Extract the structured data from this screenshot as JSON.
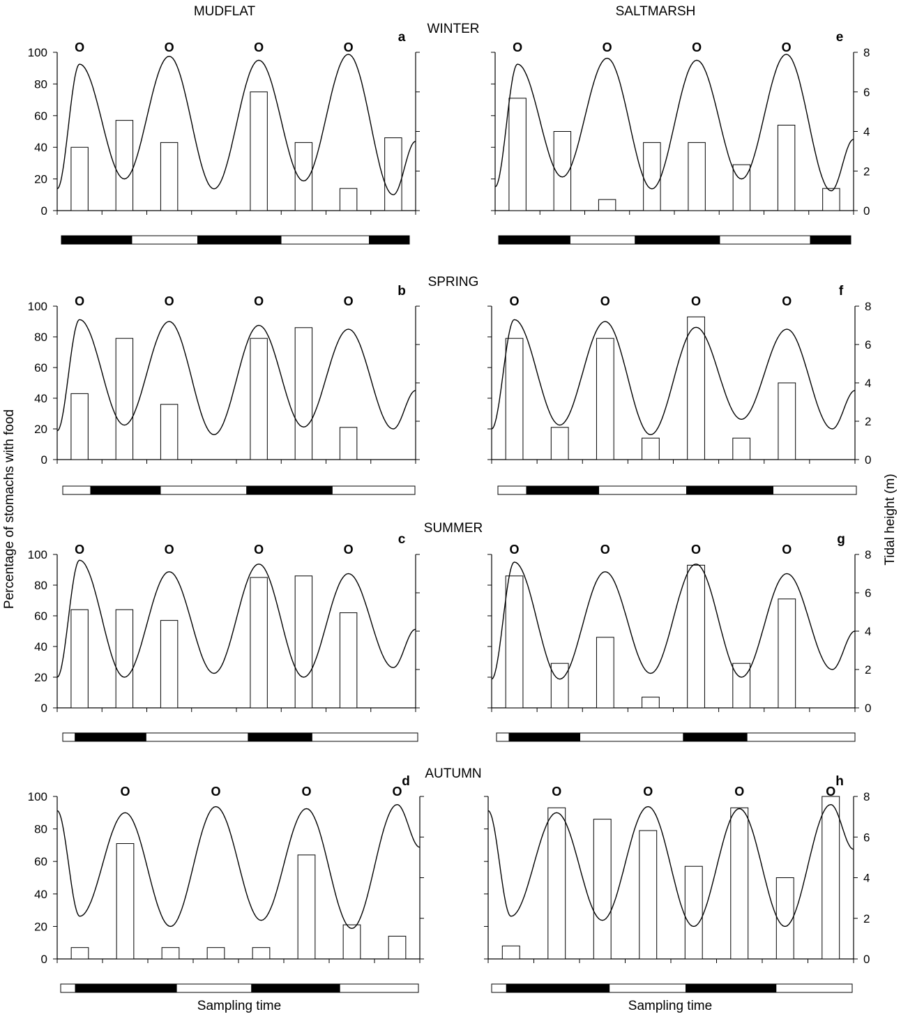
{
  "headers": {
    "left_column": "MUDFLAT",
    "right_column": "SALTMARSH",
    "y_left_label": "Percentage of stomachs with food",
    "y_right_label": "Tidal height (m)",
    "x_label": "Sampling time"
  },
  "seasons": [
    "WINTER",
    "SPRING",
    "SUMMER",
    "AUTUMN"
  ],
  "marker_symbol": "O",
  "chart_data": [
    {
      "type": "bar",
      "panel": "a",
      "habitat": "MUDFLAT",
      "season": "WINTER",
      "ylim": [
        0,
        100
      ],
      "y2lim": [
        0,
        8
      ],
      "yticks": [
        "0",
        "20",
        "40",
        "60",
        "80",
        "100"
      ],
      "y2ticks": [
        "0",
        "2",
        "4",
        "6",
        "8"
      ],
      "bars": [
        40,
        57,
        43,
        null,
        75,
        43,
        14,
        46
      ],
      "tide_highs_m": [
        7.4,
        7.8,
        7.6,
        7.9
      ],
      "tide_lows_m": [
        1.6,
        1.1,
        1.5,
        0.8
      ],
      "tide_start_m": 1.1,
      "tide_end_m": 3.5,
      "tide_first": "high",
      "marker_positions": [
        0.5,
        2.5,
        4.5,
        6.5
      ],
      "daynight": [
        [
          "dark",
          1.58
        ],
        [
          "light",
          1.48
        ],
        [
          "dark",
          1.87
        ],
        [
          "light",
          1.98
        ],
        [
          "dark",
          0.9
        ]
      ]
    },
    {
      "type": "bar",
      "panel": "b",
      "habitat": "MUDFLAT",
      "season": "SPRING",
      "ylim": [
        0,
        100
      ],
      "y2lim": [
        0,
        8
      ],
      "yticks": [
        "0",
        "20",
        "40",
        "60",
        "80",
        "100"
      ],
      "y2ticks": [
        "0",
        "2",
        "4",
        "6",
        "8"
      ],
      "bars": [
        43,
        79,
        36,
        null,
        79,
        86,
        21,
        null
      ],
      "tide_highs_m": [
        7.3,
        7.2,
        7.0,
        6.8
      ],
      "tide_lows_m": [
        1.8,
        1.3,
        1.7,
        1.6
      ],
      "tide_start_m": 1.5,
      "tide_end_m": 3.6,
      "tide_first": "high",
      "marker_positions": [
        0.5,
        2.5,
        4.5,
        6.5
      ],
      "daynight": [
        [
          "light",
          0.62
        ],
        [
          "dark",
          1.55
        ],
        [
          "light",
          1.92
        ],
        [
          "dark",
          1.9
        ],
        [
          "light",
          1.84
        ]
      ]
    },
    {
      "type": "bar",
      "panel": "c",
      "habitat": "MUDFLAT",
      "season": "SUMMER",
      "ylim": [
        0,
        100
      ],
      "y2lim": [
        0,
        8
      ],
      "yticks": [
        "0",
        "20",
        "40",
        "60",
        "80",
        "100"
      ],
      "y2ticks": [
        "0",
        "2",
        "4",
        "6",
        "8"
      ],
      "bars": [
        64,
        64,
        57,
        null,
        85,
        86,
        62,
        null
      ],
      "tide_highs_m": [
        7.7,
        7.1,
        7.5,
        7.0
      ],
      "tide_lows_m": [
        1.6,
        1.8,
        1.6,
        2.1
      ],
      "tide_start_m": 1.6,
      "tide_end_m": 4.1,
      "tide_first": "high",
      "marker_positions": [
        0.5,
        2.5,
        4.5,
        6.5
      ],
      "daynight": [
        [
          "light",
          0.28
        ],
        [
          "dark",
          1.6
        ],
        [
          "light",
          2.31
        ],
        [
          "dark",
          1.44
        ],
        [
          "light",
          2.39
        ]
      ]
    },
    {
      "type": "bar",
      "panel": "d",
      "habitat": "MUDFLAT",
      "season": "AUTUMN",
      "ylim": [
        0,
        100
      ],
      "y2lim": [
        0,
        8
      ],
      "yticks": [
        "0",
        "20",
        "40",
        "60",
        "80",
        "100"
      ],
      "y2ticks": [
        "0",
        "2",
        "4",
        "6",
        "8"
      ],
      "bars": [
        7,
        71,
        7,
        7,
        7,
        64,
        21,
        14
      ],
      "tide_lows_m": [
        2.1,
        1.6,
        1.9,
        1.5
      ],
      "tide_highs_m": [
        7.2,
        7.5,
        7.4,
        7.6
      ],
      "tide_start_m": 7.3,
      "tide_end_m": 5.5,
      "tide_first": "low",
      "marker_positions": [
        1.5,
        3.5,
        5.5,
        7.5
      ],
      "daynight": [
        [
          "light",
          0.33
        ],
        [
          "dark",
          2.26
        ],
        [
          "light",
          1.68
        ],
        [
          "dark",
          1.97
        ],
        [
          "light",
          1.76
        ]
      ]
    },
    {
      "type": "bar",
      "panel": "e",
      "habitat": "SALTMARSH",
      "season": "WINTER",
      "ylim": [
        0,
        100
      ],
      "y2lim": [
        0,
        8
      ],
      "yticks": [
        "0",
        "20",
        "40",
        "60",
        "80",
        "100"
      ],
      "y2ticks": [
        "0",
        "2",
        "4",
        "6",
        "8"
      ],
      "bars": [
        71,
        50,
        7,
        43,
        43,
        29,
        54,
        14
      ],
      "tide_highs_m": [
        7.4,
        7.7,
        7.6,
        7.9
      ],
      "tide_lows_m": [
        1.7,
        1.1,
        1.6,
        1.0
      ],
      "tide_start_m": 1.2,
      "tide_end_m": 3.6,
      "tide_first": "high",
      "marker_positions": [
        0.5,
        2.5,
        4.5,
        6.5
      ],
      "daynight": [
        [
          "dark",
          1.59
        ],
        [
          "light",
          1.45
        ],
        [
          "dark",
          1.88
        ],
        [
          "light",
          2.02
        ],
        [
          "dark",
          0.9
        ]
      ]
    },
    {
      "type": "bar",
      "panel": "f",
      "habitat": "SALTMARSH",
      "season": "SPRING",
      "ylim": [
        0,
        100
      ],
      "y2lim": [
        0,
        8
      ],
      "yticks": [
        "0",
        "20",
        "40",
        "60",
        "80",
        "100"
      ],
      "y2ticks": [
        "0",
        "2",
        "4",
        "6",
        "8"
      ],
      "bars": [
        79,
        21,
        79,
        14,
        93,
        14,
        50,
        null
      ],
      "tide_highs_m": [
        7.3,
        7.2,
        6.9,
        6.8
      ],
      "tide_lows_m": [
        1.8,
        1.3,
        2.1,
        1.6
      ],
      "tide_start_m": 1.6,
      "tide_end_m": 3.6,
      "tide_first": "high",
      "marker_positions": [
        0.5,
        2.5,
        4.5,
        6.5
      ],
      "daynight": [
        [
          "light",
          0.64
        ],
        [
          "dark",
          1.61
        ],
        [
          "light",
          1.96
        ],
        [
          "dark",
          1.93
        ],
        [
          "light",
          1.86
        ]
      ]
    },
    {
      "type": "bar",
      "panel": "g",
      "habitat": "SALTMARSH",
      "season": "SUMMER",
      "ylim": [
        0,
        100
      ],
      "y2lim": [
        0,
        8
      ],
      "yticks": [
        "0",
        "20",
        "40",
        "60",
        "80",
        "100"
      ],
      "y2ticks": [
        "0",
        "2",
        "4",
        "6",
        "8"
      ],
      "bars": [
        86,
        29,
        46,
        7,
        93,
        29,
        71,
        null
      ],
      "tide_highs_m": [
        7.6,
        7.1,
        7.5,
        7.0
      ],
      "tide_lows_m": [
        1.5,
        1.8,
        1.6,
        2.0
      ],
      "tide_start_m": 1.5,
      "tide_end_m": 4.0,
      "tide_first": "high",
      "marker_positions": [
        0.5,
        2.5,
        4.5,
        6.5
      ],
      "daynight": [
        [
          "light",
          0.28
        ],
        [
          "dark",
          1.58
        ],
        [
          "light",
          2.31
        ],
        [
          "dark",
          1.42
        ],
        [
          "light",
          2.41
        ]
      ]
    },
    {
      "type": "bar",
      "panel": "h",
      "habitat": "SALTMARSH",
      "season": "AUTUMN",
      "ylim": [
        0,
        100
      ],
      "y2lim": [
        0,
        8
      ],
      "yticks": [
        "0",
        "20",
        "40",
        "60",
        "80",
        "100"
      ],
      "y2ticks": [
        "0",
        "2",
        "4",
        "6",
        "8"
      ],
      "bars": [
        8,
        93,
        86,
        79,
        57,
        93,
        50,
        100
      ],
      "tide_lows_m": [
        2.1,
        1.9,
        1.6,
        1.6
      ],
      "tide_highs_m": [
        7.2,
        7.5,
        7.4,
        7.6
      ],
      "tide_start_m": 7.3,
      "tide_end_m": 5.4,
      "tide_first": "low",
      "marker_positions": [
        1.5,
        3.5,
        5.5,
        7.5
      ],
      "daynight": [
        [
          "light",
          0.33
        ],
        [
          "dark",
          2.28
        ],
        [
          "light",
          1.7
        ],
        [
          "dark",
          2.0
        ],
        [
          "light",
          1.69
        ]
      ]
    }
  ]
}
